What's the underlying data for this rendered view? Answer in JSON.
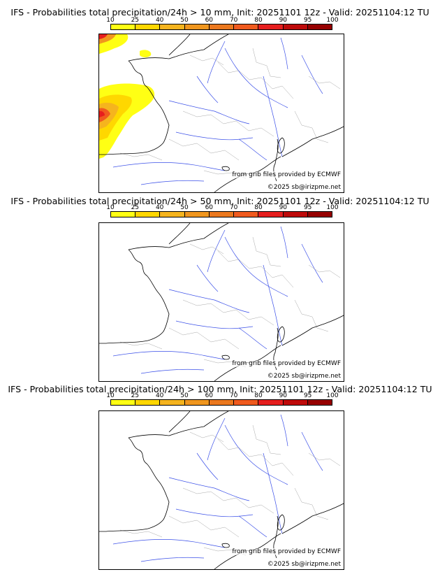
{
  "colorbar": {
    "tick_labels": [
      "10",
      "25",
      "40",
      "50",
      "60",
      "70",
      "80",
      "90",
      "95",
      "100"
    ],
    "colors": [
      "#ffff14",
      "#ffd700",
      "#f5b41e",
      "#f0961e",
      "#eb781e",
      "#f05a1e",
      "#e61e1e",
      "#be0a0a",
      "#960000",
      "#640000"
    ]
  },
  "panels": [
    {
      "title": "IFS - Probabilities total precipitation/24h > 10 mm, Init: 20251101 12z - Valid: 20251104:12 TU",
      "source_credit": "from grib files provided by ECMWF",
      "copyright": "©2025 sb@irizpme.net"
    },
    {
      "title": "IFS - Probabilities total precipitation/24h > 50 mm, Init: 20251101 12z - Valid: 20251104:12 TU",
      "source_credit": "from grib files provided by ECMWF",
      "copyright": "©2025 sb@irizpme.net"
    },
    {
      "title": "IFS - Probabilities total precipitation/24h > 100 mm, Init: 20251101 12z - Valid: 20251104:12 TU",
      "source_credit": "from grib files provided by ECMWF",
      "copyright": "©2025 sb@irizpme.net"
    }
  ]
}
